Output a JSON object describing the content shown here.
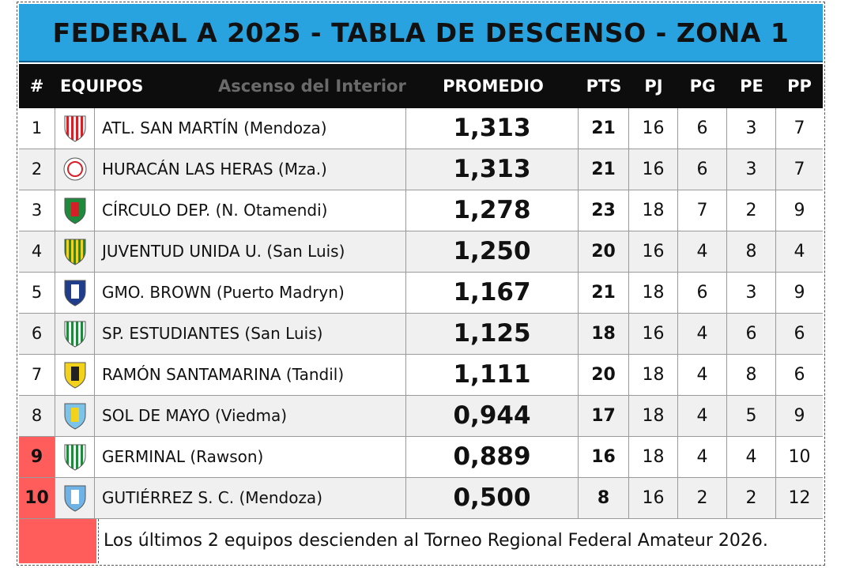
{
  "title": "FEDERAL A 2025 - TABLA DE DESCENSO - ZONA 1",
  "header": {
    "num": "#",
    "team": "EQUIPOS",
    "brand": "Ascenso del Interior",
    "promedio": "PROMEDIO",
    "pts": "PTS",
    "pj": "PJ",
    "pg": "PG",
    "pe": "PE",
    "pp": "PP"
  },
  "rows": [
    {
      "pos": "1",
      "team": "ATL. SAN MARTÍN (Mendoza)",
      "promedio": "1,313",
      "pts": "21",
      "pj": "16",
      "pg": "6",
      "pe": "3",
      "pp": "7",
      "crest": "red-white-striped-shield-icon",
      "colors": [
        "#d61f26",
        "#ffffff"
      ],
      "relegated": false
    },
    {
      "pos": "2",
      "team": "HURACÁN LAS HERAS (Mza.)",
      "promedio": "1,313",
      "pts": "21",
      "pj": "16",
      "pg": "6",
      "pe": "3",
      "pp": "7",
      "crest": "red-circle-crest-icon",
      "colors": [
        "#d61f26",
        "#ffffff"
      ],
      "relegated": false
    },
    {
      "pos": "3",
      "team": "CÍRCULO DEP. (N. Otamendi)",
      "promedio": "1,278",
      "pts": "23",
      "pj": "18",
      "pg": "7",
      "pe": "2",
      "pp": "9",
      "crest": "green-red-shield-icon",
      "colors": [
        "#1e8a3c",
        "#d61f26"
      ],
      "relegated": false
    },
    {
      "pos": "4",
      "team": "JUVENTUD UNIDA U. (San Luis)",
      "promedio": "1,250",
      "pts": "20",
      "pj": "16",
      "pg": "4",
      "pe": "8",
      "pp": "4",
      "crest": "yellow-green-striped-shield-icon",
      "colors": [
        "#f2d21b",
        "#1e8a3c"
      ],
      "relegated": false
    },
    {
      "pos": "5",
      "team": "GMO. BROWN (Puerto Madryn)",
      "promedio": "1,167",
      "pts": "21",
      "pj": "18",
      "pg": "6",
      "pe": "3",
      "pp": "9",
      "crest": "blue-white-shield-icon",
      "colors": [
        "#1f3d8a",
        "#ffffff"
      ],
      "relegated": false
    },
    {
      "pos": "6",
      "team": "SP. ESTUDIANTES (San Luis)",
      "promedio": "1,125",
      "pts": "18",
      "pj": "16",
      "pg": "4",
      "pe": "6",
      "pp": "6",
      "crest": "green-white-striped-shield-icon",
      "colors": [
        "#1e8a3c",
        "#ffffff"
      ],
      "relegated": false
    },
    {
      "pos": "7",
      "team": "RAMÓN SANTAMARINA (Tandil)",
      "promedio": "1,111",
      "pts": "20",
      "pj": "18",
      "pg": "4",
      "pe": "8",
      "pp": "6",
      "crest": "yellow-black-shield-icon",
      "colors": [
        "#f2d21b",
        "#222222"
      ],
      "relegated": false
    },
    {
      "pos": "8",
      "team": "SOL DE MAYO (Viedma)",
      "promedio": "0,944",
      "pts": "17",
      "pj": "18",
      "pg": "4",
      "pe": "5",
      "pp": "9",
      "crest": "light-blue-sun-shield-icon",
      "colors": [
        "#7cc3ea",
        "#f2d21b"
      ],
      "relegated": false
    },
    {
      "pos": "9",
      "team": "GERMINAL (Rawson)",
      "promedio": "0,889",
      "pts": "16",
      "pj": "18",
      "pg": "4",
      "pe": "4",
      "pp": "10",
      "crest": "green-white-striped-shield-icon",
      "colors": [
        "#1e8a3c",
        "#ffffff"
      ],
      "relegated": true
    },
    {
      "pos": "10",
      "team": "GUTIÉRREZ S. C. (Mendoza)",
      "promedio": "0,500",
      "pts": "8",
      "pj": "16",
      "pg": "2",
      "pe": "2",
      "pp": "12",
      "crest": "light-blue-shield-icon",
      "colors": [
        "#6fb2e6",
        "#ffffff"
      ],
      "relegated": true
    }
  ],
  "legend": {
    "text": "Los últimos 2 equipos descienden al Torneo Regional Federal Amateur 2026.",
    "color": "#ff5c5c"
  },
  "colors": {
    "title_bg": "#29a3e0",
    "header_bg": "#0d0d0d",
    "relegation": "#ff5c5c"
  }
}
